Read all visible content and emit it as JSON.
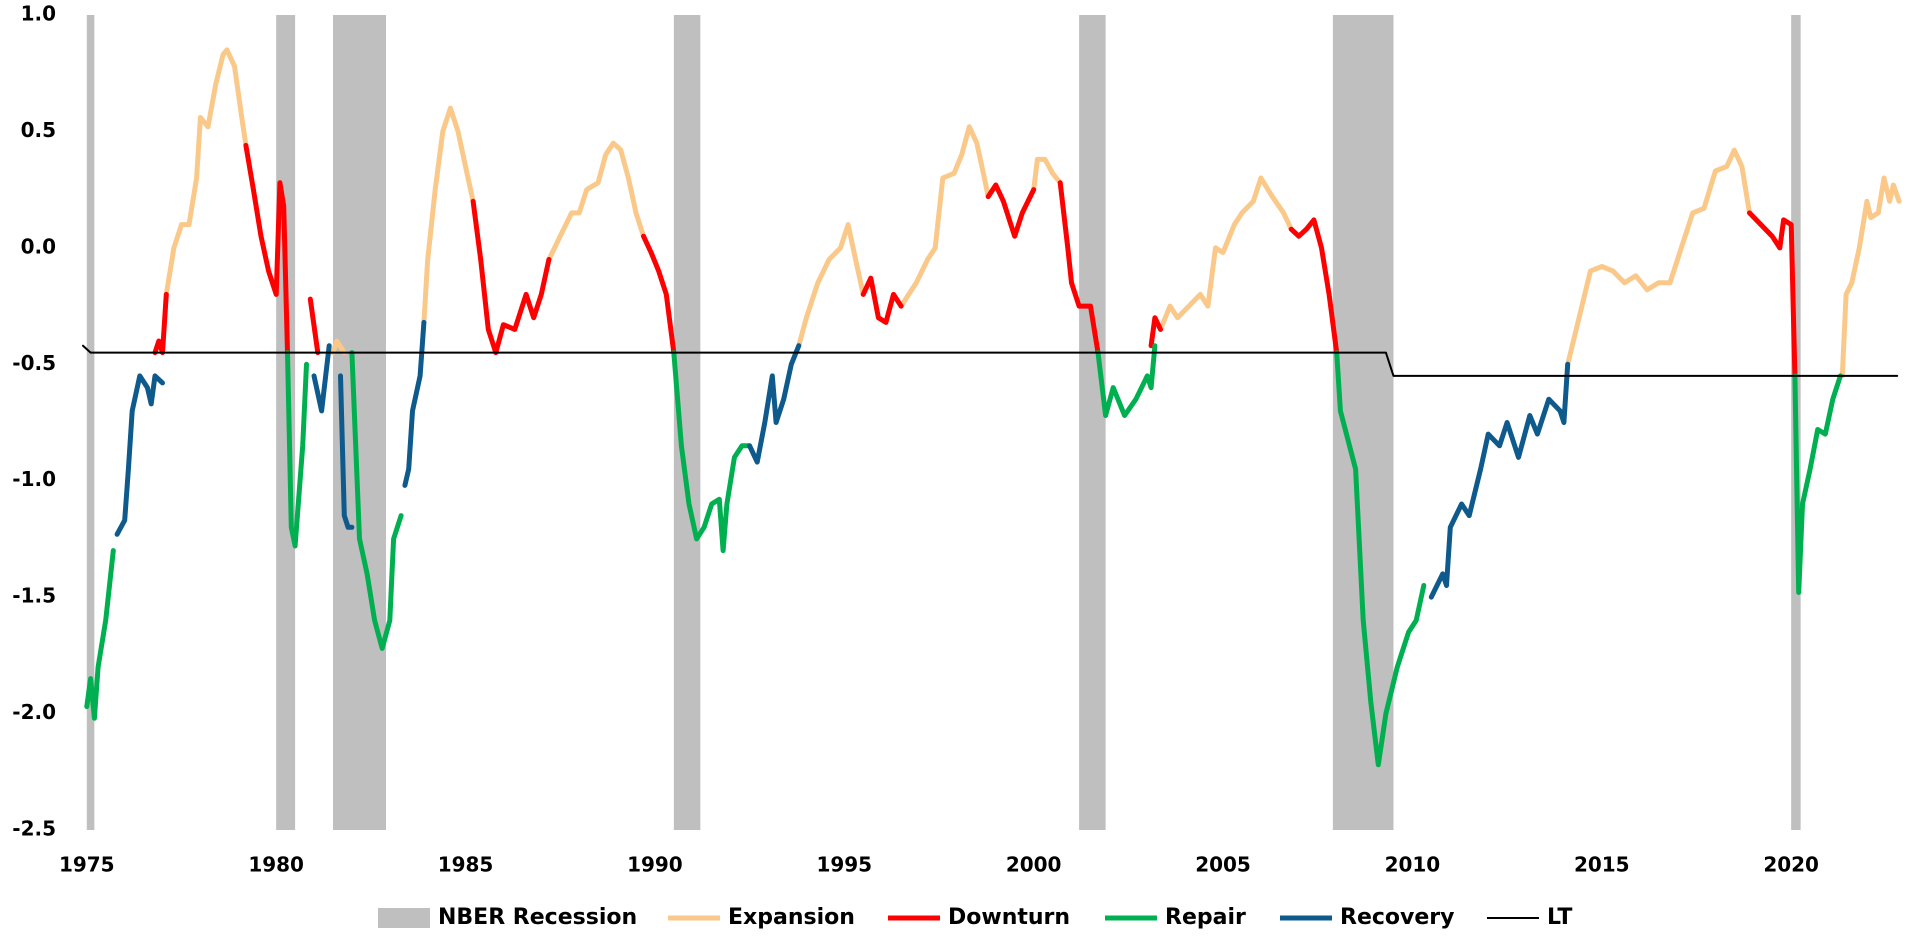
{
  "chart_data": {
    "type": "line",
    "xlim": [
      1974.9,
      2022.9
    ],
    "ylim": [
      -2.5,
      1.0
    ],
    "xticks": [
      1975,
      1980,
      1985,
      1990,
      1995,
      2000,
      2005,
      2010,
      2015,
      2020
    ],
    "yticks": [
      {
        "value": -2.5,
        "label": "-2.5"
      },
      {
        "value": -2,
        "label": "-2.0"
      },
      {
        "value": -1.5,
        "label": "-1.5"
      },
      {
        "value": -1,
        "label": "-1.0"
      },
      {
        "value": -0.5,
        "label": "-0.5"
      },
      {
        "value": 0,
        "label": "0.0"
      },
      {
        "value": 0.5,
        "label": "0.5"
      },
      {
        "value": 1,
        "label": "1.0"
      }
    ],
    "grid": false,
    "legend": "bottom",
    "recessions": {
      "name": "NBER Recession",
      "color": "#bfbfbf",
      "periods": [
        [
          1975.0,
          1975.2
        ],
        [
          1980.0,
          1980.5
        ],
        [
          1981.5,
          1982.9
        ],
        [
          1990.5,
          1991.2
        ],
        [
          2001.2,
          2001.9
        ],
        [
          2007.9,
          2009.5
        ],
        [
          2020.0,
          2020.25
        ]
      ]
    },
    "series": [
      {
        "name": "Expansion",
        "color": "#fac98a",
        "x": [
          1977.1,
          1977.3,
          1977.5,
          1977.7,
          1977.9,
          1978.0,
          1978.2,
          1978.4,
          1978.6,
          1978.7,
          1978.9,
          1979.1,
          1979.2,
          null,
          1981.5,
          1981.6,
          1981.8,
          null,
          1983.9,
          1984.0,
          1984.2,
          1984.4,
          1984.6,
          1984.8,
          1985.0,
          1985.2,
          null,
          1987.2,
          1987.5,
          1987.8,
          1988.0,
          1988.2,
          1988.5,
          1988.7,
          1988.9,
          1989.1,
          1989.3,
          1989.5,
          1989.7,
          null,
          1993.8,
          1994.0,
          1994.3,
          1994.6,
          1994.9,
          1995.1,
          1995.3,
          1995.5,
          null,
          1996.5,
          1996.9,
          1997.2,
          1997.4,
          1997.6,
          1997.9,
          1998.1,
          1998.3,
          1998.5,
          1998.7,
          1998.8,
          null,
          2000.0,
          2000.1,
          2000.3,
          2000.5,
          2000.7,
          null,
          2003.35,
          2003.6,
          2003.8,
          2004.1,
          2004.4,
          2004.6,
          2004.8,
          2005.0,
          2005.3,
          2005.5,
          2005.8,
          2006.0,
          2006.3,
          2006.6,
          2006.8,
          null,
          2014.1,
          2014.4,
          2014.7,
          2015.0,
          2015.3,
          2015.6,
          2015.9,
          2016.2,
          2016.5,
          2016.8,
          2017.1,
          2017.4,
          2017.7,
          2018.0,
          2018.3,
          2018.5,
          2018.7,
          2018.9,
          null,
          2021.35,
          2021.45,
          2021.6,
          2021.8,
          2022.0,
          2022.1,
          2022.3,
          2022.45,
          2022.6,
          2022.7,
          2022.85
        ],
        "values": [
          -0.2,
          0.0,
          0.1,
          0.1,
          0.3,
          0.56,
          0.52,
          0.7,
          0.83,
          0.85,
          0.78,
          0.55,
          0.44,
          null,
          -0.45,
          -0.4,
          -0.45,
          null,
          -0.32,
          -0.05,
          0.25,
          0.5,
          0.6,
          0.5,
          0.35,
          0.2,
          null,
          -0.05,
          0.05,
          0.15,
          0.15,
          0.25,
          0.28,
          0.4,
          0.45,
          0.42,
          0.3,
          0.15,
          0.05,
          null,
          -0.42,
          -0.3,
          -0.15,
          -0.05,
          0.0,
          0.1,
          -0.05,
          -0.2,
          null,
          -0.25,
          -0.15,
          -0.05,
          0.0,
          0.3,
          0.32,
          0.4,
          0.52,
          0.45,
          0.3,
          0.22,
          null,
          0.25,
          0.38,
          0.38,
          0.32,
          0.28,
          null,
          -0.35,
          -0.25,
          -0.3,
          -0.25,
          -0.2,
          -0.25,
          0.0,
          -0.02,
          0.1,
          0.15,
          0.2,
          0.3,
          0.22,
          0.15,
          0.08,
          null,
          -0.5,
          -0.3,
          -0.1,
          -0.08,
          -0.1,
          -0.15,
          -0.12,
          -0.18,
          -0.15,
          -0.15,
          0.0,
          0.15,
          0.17,
          0.33,
          0.35,
          0.42,
          0.35,
          0.15,
          null,
          -0.55,
          -0.2,
          -0.15,
          0.0,
          0.2,
          0.13,
          0.15,
          0.3,
          0.2,
          0.27,
          0.2
        ]
      },
      {
        "name": "Downturn",
        "color": "#ff0000",
        "x": [
          1976.8,
          1976.9,
          1977.0,
          1977.1,
          null,
          1979.2,
          1979.4,
          1979.6,
          1979.8,
          1979.9,
          1980.0,
          1980.1,
          1980.2,
          1980.3,
          null,
          1980.9,
          1981.1,
          null,
          1985.2,
          1985.4,
          1985.6,
          1985.8,
          1986.0,
          1986.3,
          1986.6,
          1986.8,
          1987.0,
          1987.2,
          null,
          1989.7,
          1989.9,
          1990.1,
          1990.3,
          1990.5,
          null,
          1995.5,
          1995.7,
          1995.9,
          1996.1,
          1996.3,
          1996.5,
          null,
          1998.8,
          1999.0,
          1999.2,
          1999.4,
          1999.5,
          1999.7,
          2000.0,
          null,
          2000.7,
          2000.9,
          2001.0,
          2001.2,
          2001.5,
          2001.7,
          null,
          2003.1,
          2003.2,
          2003.35,
          null,
          2006.8,
          2007.0,
          2007.2,
          2007.4,
          2007.6,
          2007.8,
          2008.0,
          null,
          2018.9,
          2019.2,
          2019.5,
          2019.7,
          2019.8,
          2020.0,
          2020.1
        ],
        "values": [
          -0.45,
          -0.4,
          -0.45,
          -0.2,
          null,
          0.44,
          0.25,
          0.05,
          -0.1,
          -0.15,
          -0.2,
          0.28,
          0.18,
          -0.45,
          null,
          -0.22,
          -0.45,
          null,
          0.2,
          -0.05,
          -0.35,
          -0.45,
          -0.33,
          -0.35,
          -0.2,
          -0.3,
          -0.2,
          -0.05,
          null,
          0.05,
          -0.02,
          -0.1,
          -0.2,
          -0.45,
          null,
          -0.2,
          -0.13,
          -0.3,
          -0.32,
          -0.2,
          -0.25,
          null,
          0.22,
          0.27,
          0.2,
          0.1,
          0.05,
          0.15,
          0.25,
          null,
          0.28,
          0.0,
          -0.15,
          -0.25,
          -0.25,
          -0.45,
          null,
          -0.42,
          -0.3,
          -0.35,
          null,
          0.08,
          0.05,
          0.08,
          0.12,
          0.0,
          -0.2,
          -0.45,
          null,
          0.15,
          0.1,
          0.05,
          0.0,
          0.12,
          0.1,
          -0.55
        ]
      },
      {
        "name": "Repair",
        "color": "#00b050",
        "x": [
          1975.0,
          1975.1,
          1975.2,
          1975.3,
          1975.5,
          1975.7,
          null,
          1980.3,
          1980.4,
          1980.5,
          1980.7,
          1980.8,
          null,
          1982.0,
          1982.2,
          1982.4,
          1982.6,
          1982.8,
          1983.0,
          1983.1,
          1983.3,
          null,
          1990.5,
          1990.7,
          1990.9,
          1991.1,
          1991.3,
          1991.5,
          1991.7,
          1991.8,
          1991.9,
          1992.1,
          1992.3,
          1992.5,
          null,
          2001.7,
          2001.9,
          2002.1,
          2002.4,
          2002.7,
          2003.0,
          2003.1,
          2003.2,
          null,
          2008.0,
          2008.1,
          2008.5,
          2008.7,
          2008.9,
          2009.1,
          2009.3,
          2009.6,
          2009.9,
          2010.1,
          2010.3,
          null,
          2020.1,
          2020.2,
          2020.3,
          2020.5,
          2020.7,
          2020.9,
          2021.1,
          2021.3
        ],
        "values": [
          -1.97,
          -1.85,
          -2.02,
          -1.8,
          -1.6,
          -1.3,
          null,
          -0.45,
          -1.2,
          -1.28,
          -0.85,
          -0.5,
          null,
          -0.45,
          -1.25,
          -1.4,
          -1.6,
          -1.72,
          -1.6,
          -1.25,
          -1.15,
          null,
          -0.45,
          -0.85,
          -1.1,
          -1.25,
          -1.2,
          -1.1,
          -1.08,
          -1.3,
          -1.1,
          -0.9,
          -0.85,
          -0.85,
          null,
          -0.45,
          -0.72,
          -0.6,
          -0.72,
          -0.65,
          -0.55,
          -0.6,
          -0.42,
          null,
          -0.45,
          -0.7,
          -0.95,
          -1.6,
          -1.95,
          -2.22,
          -2.0,
          -1.8,
          -1.65,
          -1.6,
          -1.45,
          null,
          -0.55,
          -1.48,
          -1.1,
          -0.95,
          -0.78,
          -0.8,
          -0.65,
          -0.55
        ]
      },
      {
        "name": "Recovery",
        "color": "#0f5a8c",
        "x": [
          1975.8,
          1976.0,
          1976.1,
          1976.2,
          1976.4,
          1976.6,
          1976.7,
          1976.8,
          1977.0,
          null,
          1981.0,
          1981.2,
          1981.4,
          null,
          1981.7,
          1981.8,
          1981.9,
          1982.0,
          null,
          1983.4,
          1983.5,
          1983.6,
          1983.8,
          1983.9,
          null,
          1992.5,
          1992.7,
          1992.9,
          1993.1,
          1993.2,
          1993.4,
          1993.6,
          1993.8,
          null,
          2010.5,
          2010.8,
          2010.9,
          2011.0,
          2011.3,
          2011.5,
          2011.8,
          2012.0,
          2012.3,
          2012.5,
          2012.8,
          2013.1,
          2013.3,
          2013.6,
          2013.9,
          2014.0,
          2014.1
        ],
        "values": [
          -1.23,
          -1.17,
          -0.95,
          -0.7,
          -0.55,
          -0.6,
          -0.67,
          -0.55,
          -0.58,
          null,
          -0.55,
          -0.7,
          -0.42,
          null,
          -0.55,
          -1.15,
          -1.2,
          -1.2,
          null,
          -1.02,
          -0.95,
          -0.7,
          -0.55,
          -0.32,
          null,
          -0.85,
          -0.92,
          -0.75,
          -0.55,
          -0.75,
          -0.65,
          -0.5,
          -0.42,
          null,
          -1.5,
          -1.4,
          -1.45,
          -1.2,
          -1.1,
          -1.15,
          -0.95,
          -0.8,
          -0.85,
          -0.75,
          -0.9,
          -0.72,
          -0.8,
          -0.65,
          -0.7,
          -0.75,
          -0.5
        ]
      },
      {
        "name": "LT",
        "color": "#000000",
        "x": [
          1974.9,
          1975.1,
          2009.3,
          2009.5,
          2022.8
        ],
        "values": [
          -0.42,
          -0.45,
          -0.45,
          -0.55,
          -0.55
        ]
      }
    ]
  }
}
